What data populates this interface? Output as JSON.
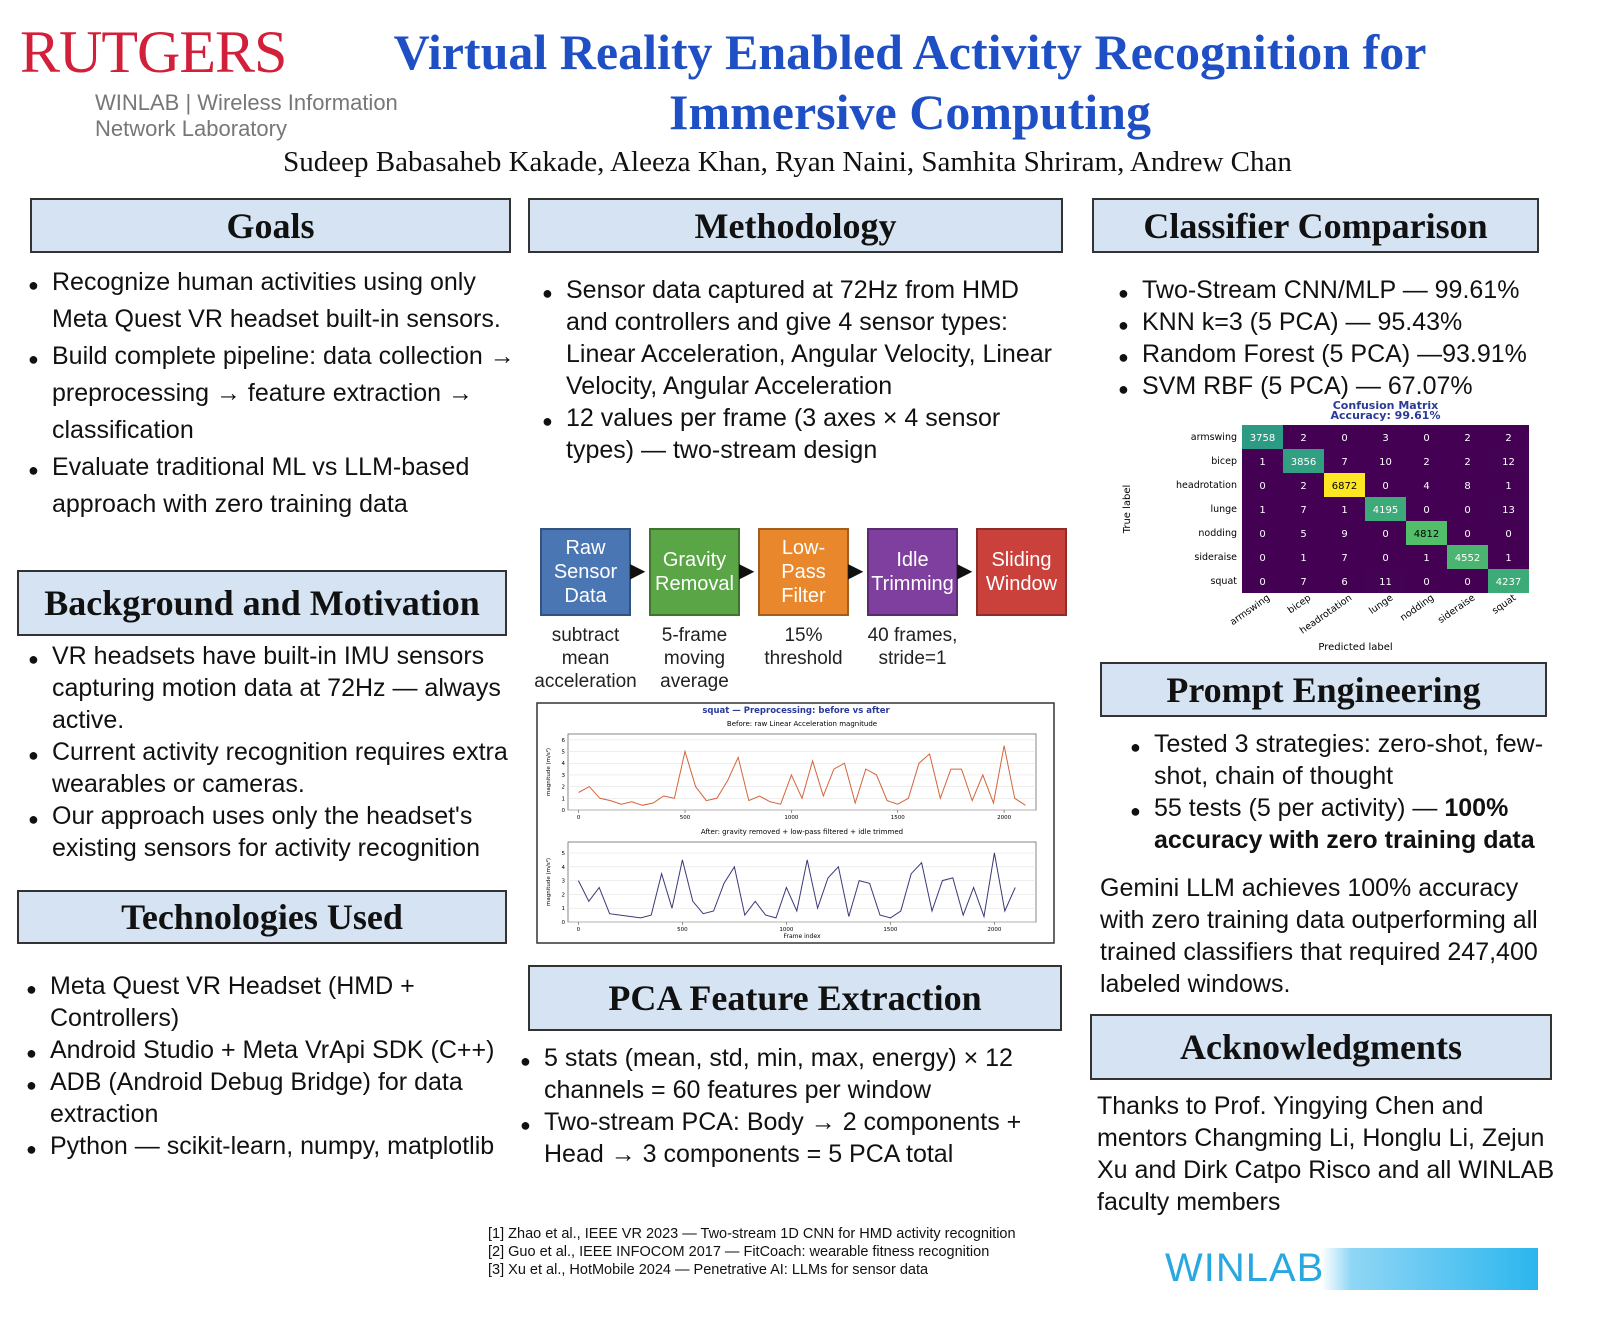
{
  "header": {
    "logo": "RUTGERS",
    "lab_line1": "WINLAB | Wireless Information",
    "lab_line2": "Network Laboratory",
    "title_line1": "Virtual Reality Enabled Activity Recognition for",
    "title_line2": "Immersive Computing",
    "authors": "Sudeep Babasaheb Kakade, Aleeza Khan, Ryan Naini, Samhita Shriram, Andrew Chan"
  },
  "goals": {
    "heading": "Goals",
    "items": [
      "Recognize human activities using only Meta Quest VR headset built-in sensors.",
      "Build complete pipeline: data collection → preprocessing → feature extraction → classification",
      "Evaluate traditional ML vs LLM-based approach with zero training data"
    ]
  },
  "background": {
    "heading": "Background and Motivation",
    "items": [
      "VR headsets have built-in IMU sensors capturing motion data at 72Hz — always active.",
      "Current activity recognition requires extra wearables or cameras.",
      "Our approach uses only the headset's existing sensors for activity recognition"
    ]
  },
  "technologies": {
    "heading": "Technologies Used",
    "items": [
      "Meta Quest  VR Headset (HMD + Controllers)",
      "Android Studio + Meta VrApi SDK (C++)",
      "ADB (Android Debug Bridge) for data extraction",
      "Python — scikit-learn, numpy, matplotlib"
    ]
  },
  "methodology": {
    "heading": "Methodology",
    "items": [
      "Sensor data captured at 72Hz from HMD and controllers and give 4 sensor types: Linear Acceleration, Angular Velocity, Linear Velocity, Angular Acceleration",
      "12 values per frame (3 axes × 4 sensor types) — two-stream design"
    ],
    "pipeline": [
      {
        "label": "Raw Sensor Data",
        "caption": "subtract mean acceleration",
        "color": "#4a76b4"
      },
      {
        "label": "Gravity Removal",
        "caption": "5-frame moving average",
        "color": "#5aa545"
      },
      {
        "label": "Low-Pass Filter",
        "caption": "15% threshold",
        "color": "#e8872c"
      },
      {
        "label": "Idle Trimming",
        "caption": "40 frames, stride=1",
        "color": "#7f3f9e"
      },
      {
        "label": "Sliding Window",
        "caption": "",
        "color": "#c9413a"
      }
    ],
    "plot": {
      "type": "line",
      "title": "squat — Preprocessing: before vs after",
      "charts": [
        {
          "subtitle": "Before: raw Linear Acceleration magnitude",
          "ylabel": "magnitude (m/s²)",
          "color": "#d4643a",
          "xlim": [
            -50,
            2150
          ],
          "ylim": [
            0,
            6.5
          ],
          "xticks": [
            0,
            500,
            1000,
            1500,
            2000
          ],
          "yticks": [
            0,
            1,
            2,
            3,
            4,
            5,
            6
          ],
          "x": [
            0,
            50,
            100,
            150,
            200,
            250,
            300,
            350,
            400,
            450,
            500,
            550,
            600,
            650,
            700,
            750,
            800,
            850,
            900,
            950,
            1000,
            1050,
            1100,
            1150,
            1200,
            1250,
            1300,
            1350,
            1400,
            1450,
            1500,
            1550,
            1600,
            1650,
            1700,
            1750,
            1800,
            1850,
            1900,
            1950,
            2000,
            2050,
            2100
          ],
          "values": [
            1.5,
            2.0,
            1.0,
            0.8,
            0.5,
            0.7,
            0.4,
            0.6,
            1.2,
            1.0,
            5.0,
            2.0,
            0.8,
            1.0,
            2.5,
            4.5,
            0.8,
            1.2,
            0.7,
            0.5,
            3.0,
            1.0,
            4.2,
            1.2,
            3.5,
            4.0,
            0.6,
            3.5,
            3.0,
            0.8,
            0.5,
            1.0,
            4.0,
            4.8,
            1.0,
            3.5,
            3.5,
            0.8,
            3.0,
            0.6,
            5.5,
            1.0,
            0.4
          ]
        },
        {
          "subtitle": "After: gravity removed + low-pass filtered + idle trimmed",
          "ylabel": "magnitude (m/s²)",
          "xlabel": "Frame index",
          "color": "#3a3a78",
          "xlim": [
            -50,
            2200
          ],
          "ylim": [
            0,
            5.8
          ],
          "xticks": [
            0,
            500,
            1000,
            1500,
            2000
          ],
          "yticks": [
            0,
            1,
            2,
            3,
            4,
            5
          ],
          "x": [
            0,
            50,
            100,
            150,
            200,
            250,
            300,
            350,
            400,
            450,
            500,
            550,
            600,
            650,
            700,
            750,
            800,
            850,
            900,
            950,
            1000,
            1050,
            1100,
            1150,
            1200,
            1250,
            1300,
            1350,
            1400,
            1450,
            1500,
            1550,
            1600,
            1650,
            1700,
            1750,
            1800,
            1850,
            1900,
            1950,
            2000,
            2050,
            2100
          ],
          "values": [
            3.0,
            1.5,
            2.5,
            0.6,
            0.5,
            0.4,
            0.3,
            0.5,
            3.5,
            1.0,
            4.5,
            1.5,
            0.6,
            0.8,
            2.8,
            4.0,
            0.5,
            1.5,
            0.5,
            0.3,
            2.5,
            0.8,
            4.5,
            1.0,
            3.2,
            4.0,
            0.4,
            3.0,
            2.8,
            0.5,
            0.3,
            0.8,
            3.5,
            4.3,
            0.8,
            3.0,
            3.2,
            0.5,
            2.5,
            0.4,
            5.0,
            0.8,
            2.5
          ]
        }
      ]
    }
  },
  "pca": {
    "heading": "PCA Feature Extraction",
    "items": [
      "5 stats (mean, std, min, max, energy) × 12 channels = 60 features per window",
      "Two-stream PCA: Body → 2 components + Head → 3 components = 5 PCA total"
    ]
  },
  "classifiers": {
    "heading": "Classifier Comparison",
    "items": [
      "Two-Stream CNN/MLP — 99.61%",
      "KNN k=3 (5 PCA) — 95.43%",
      "Random Forest (5 PCA) —93.91%",
      "SVM RBF (5 PCA) — 67.07%"
    ],
    "confusion": {
      "title": "Confusion Matrix",
      "subtitle": "Accuracy: 99.61%",
      "labels": [
        "armswing",
        "bicep",
        "headrotation",
        "lunge",
        "nodding",
        "sideraise",
        "squat"
      ],
      "ylabel": "True label",
      "xlabel": "Predicted label",
      "matrix": [
        [
          3758,
          2,
          0,
          3,
          0,
          2,
          2
        ],
        [
          1,
          3856,
          7,
          10,
          2,
          2,
          12
        ],
        [
          0,
          2,
          6872,
          0,
          4,
          8,
          1
        ],
        [
          1,
          7,
          1,
          4195,
          0,
          0,
          13
        ],
        [
          0,
          5,
          9,
          0,
          4812,
          0,
          0
        ],
        [
          0,
          1,
          7,
          0,
          1,
          4552,
          1
        ],
        [
          0,
          7,
          6,
          11,
          0,
          0,
          4237
        ]
      ]
    }
  },
  "prompt": {
    "heading": "Prompt Engineering",
    "items": [
      {
        "text": "Tested 3 strategies: zero-shot, few-shot, chain of thought"
      },
      {
        "text": "55 tests (5 per activity) — ",
        "bold": "100% accuracy with zero training data"
      }
    ],
    "summary": "Gemini LLM achieves 100% accuracy with zero training data outperforming all trained classifiers that required 247,400 labeled windows."
  },
  "ack": {
    "heading": "Acknowledgments",
    "text": "Thanks to Prof. Yingying Chen and mentors Changming Li, Honglu Li, Zejun Xu and Dirk Catpo Risco and all WINLAB faculty members"
  },
  "references": [
    "[1] Zhao et al., IEEE VR 2023 — Two-stream 1D CNN for HMD activity recognition",
    "[2] Guo et al., IEEE INFOCOM 2017 — FitCoach: wearable fitness recognition",
    "[3] Xu et al., HotMobile 2024 — Penetrative AI: LLMs for sensor data"
  ],
  "footer_logo": "WINLAB"
}
